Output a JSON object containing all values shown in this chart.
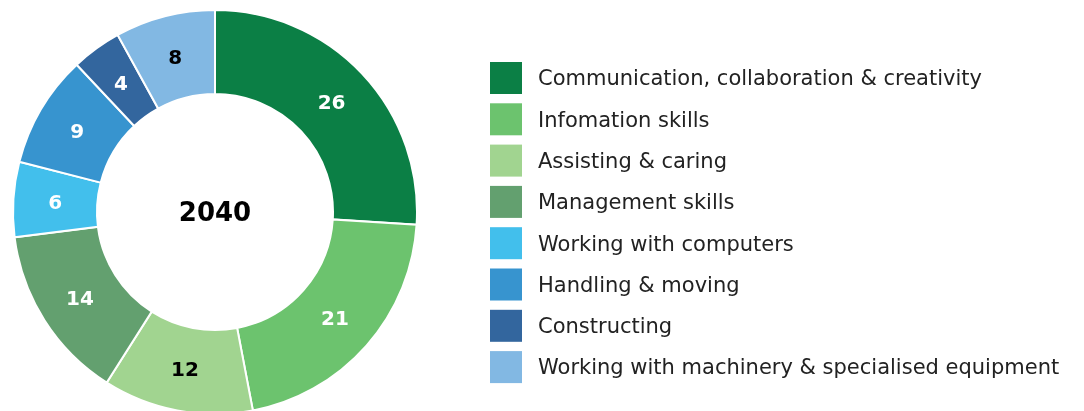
{
  "chart_data": {
    "type": "donut",
    "title": "2040",
    "categories": [
      "Communication, collaboration & creativity",
      "Infomation skills",
      "Assisting & caring",
      "Management skills",
      "Working with computers",
      "Handling & moving",
      "Constructing",
      "Working with machinery & specialised equipment"
    ],
    "values": [
      26,
      21,
      12,
      14,
      6,
      9,
      4,
      8
    ],
    "colors": [
      "#0b7f45",
      "#6cc36e",
      "#a1d490",
      "#63a06f",
      "#42bfec",
      "#3794cf",
      "#33669e",
      "#82b8e3"
    ],
    "data_labels": true,
    "legend": "right"
  }
}
